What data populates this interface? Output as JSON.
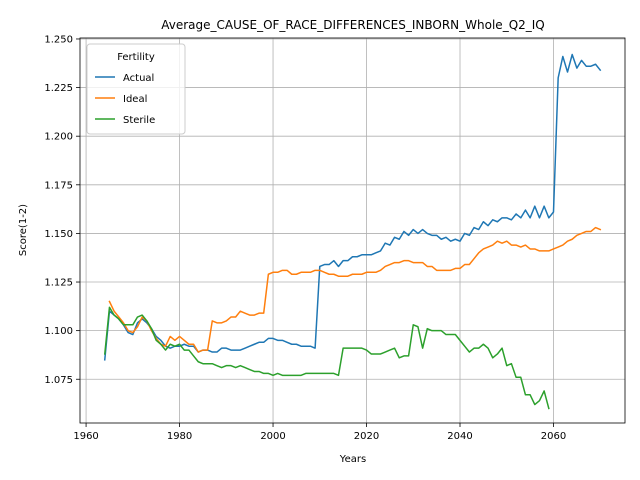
{
  "chart_data": {
    "type": "line",
    "title": "Average_CAUSE_OF_RACE_DIFFERENCES_INBORN_Whole_Q2_IQ",
    "xlabel": "Years",
    "ylabel": "Score(1-2)",
    "xlim": [
      1958.7,
      2075.3
    ],
    "ylim": [
      1.0525,
      1.2505
    ],
    "x_ticks": [
      1960,
      1980,
      2000,
      2020,
      2040,
      2060
    ],
    "y_ticks": [
      1.075,
      1.1,
      1.125,
      1.15,
      1.175,
      1.2,
      1.225,
      1.25
    ],
    "x_tick_labels": [
      "1960",
      "1980",
      "2000",
      "2020",
      "2040",
      "2060"
    ],
    "y_tick_labels": [
      "1.075",
      "1.100",
      "1.125",
      "1.150",
      "1.175",
      "1.200",
      "1.225",
      "1.250"
    ],
    "grid": true,
    "legend": {
      "title": "Fertility",
      "position": "top-left"
    },
    "series": [
      {
        "name": "Actual",
        "color": "#1f77b4",
        "points": [
          [
            1964,
            1.085
          ],
          [
            1965,
            1.11
          ],
          [
            1966,
            1.108
          ],
          [
            1967,
            1.106
          ],
          [
            1968,
            1.103
          ],
          [
            1969,
            1.099
          ],
          [
            1970,
            1.098
          ],
          [
            1971,
            1.104
          ],
          [
            1972,
            1.106
          ],
          [
            1973,
            1.104
          ],
          [
            1974,
            1.101
          ],
          [
            1975,
            1.097
          ],
          [
            1976,
            1.095
          ],
          [
            1977,
            1.092
          ],
          [
            1978,
            1.091
          ],
          [
            1979,
            1.092
          ],
          [
            1980,
            1.092
          ],
          [
            1981,
            1.093
          ],
          [
            1982,
            1.092
          ],
          [
            1983,
            1.092
          ],
          [
            1984,
            1.089
          ],
          [
            1985,
            1.09
          ],
          [
            1986,
            1.09
          ],
          [
            1987,
            1.089
          ],
          [
            1988,
            1.089
          ],
          [
            1989,
            1.091
          ],
          [
            1990,
            1.091
          ],
          [
            1991,
            1.09
          ],
          [
            1992,
            1.09
          ],
          [
            1993,
            1.09
          ],
          [
            1994,
            1.091
          ],
          [
            1995,
            1.092
          ],
          [
            1996,
            1.093
          ],
          [
            1997,
            1.094
          ],
          [
            1998,
            1.094
          ],
          [
            1999,
            1.096
          ],
          [
            2000,
            1.096
          ],
          [
            2001,
            1.095
          ],
          [
            2002,
            1.095
          ],
          [
            2003,
            1.094
          ],
          [
            2004,
            1.093
          ],
          [
            2005,
            1.093
          ],
          [
            2006,
            1.092
          ],
          [
            2007,
            1.092
          ],
          [
            2008,
            1.092
          ],
          [
            2009,
            1.091
          ],
          [
            2010,
            1.133
          ],
          [
            2011,
            1.134
          ],
          [
            2012,
            1.134
          ],
          [
            2013,
            1.136
          ],
          [
            2014,
            1.133
          ],
          [
            2015,
            1.136
          ],
          [
            2016,
            1.136
          ],
          [
            2017,
            1.138
          ],
          [
            2018,
            1.138
          ],
          [
            2019,
            1.139
          ],
          [
            2020,
            1.139
          ],
          [
            2021,
            1.139
          ],
          [
            2022,
            1.14
          ],
          [
            2023,
            1.141
          ],
          [
            2024,
            1.145
          ],
          [
            2025,
            1.144
          ],
          [
            2026,
            1.148
          ],
          [
            2027,
            1.147
          ],
          [
            2028,
            1.151
          ],
          [
            2029,
            1.149
          ],
          [
            2030,
            1.152
          ],
          [
            2031,
            1.15
          ],
          [
            2032,
            1.152
          ],
          [
            2033,
            1.15
          ],
          [
            2034,
            1.149
          ],
          [
            2035,
            1.149
          ],
          [
            2036,
            1.147
          ],
          [
            2037,
            1.148
          ],
          [
            2038,
            1.146
          ],
          [
            2039,
            1.147
          ],
          [
            2040,
            1.146
          ],
          [
            2041,
            1.15
          ],
          [
            2042,
            1.149
          ],
          [
            2043,
            1.153
          ],
          [
            2044,
            1.152
          ],
          [
            2045,
            1.156
          ],
          [
            2046,
            1.154
          ],
          [
            2047,
            1.157
          ],
          [
            2048,
            1.156
          ],
          [
            2049,
            1.158
          ],
          [
            2050,
            1.158
          ],
          [
            2051,
            1.157
          ],
          [
            2052,
            1.16
          ],
          [
            2053,
            1.158
          ],
          [
            2054,
            1.162
          ],
          [
            2055,
            1.158
          ],
          [
            2056,
            1.164
          ],
          [
            2057,
            1.158
          ],
          [
            2058,
            1.164
          ],
          [
            2059,
            1.158
          ],
          [
            2060,
            1.161
          ],
          [
            2061,
            1.23
          ],
          [
            2062,
            1.241
          ],
          [
            2063,
            1.233
          ],
          [
            2064,
            1.242
          ],
          [
            2065,
            1.235
          ],
          [
            2066,
            1.239
          ],
          [
            2067,
            1.236
          ],
          [
            2068,
            1.236
          ],
          [
            2069,
            1.237
          ],
          [
            2070,
            1.234
          ]
        ]
      },
      {
        "name": "Ideal",
        "color": "#ff7f0e",
        "points": [
          [
            1965,
            1.115
          ],
          [
            1966,
            1.11
          ],
          [
            1967,
            1.107
          ],
          [
            1968,
            1.104
          ],
          [
            1969,
            1.1
          ],
          [
            1970,
            1.099
          ],
          [
            1971,
            1.102
          ],
          [
            1972,
            1.107
          ],
          [
            1973,
            1.105
          ],
          [
            1974,
            1.1
          ],
          [
            1975,
            1.096
          ],
          [
            1976,
            1.093
          ],
          [
            1977,
            1.092
          ],
          [
            1978,
            1.097
          ],
          [
            1979,
            1.095
          ],
          [
            1980,
            1.097
          ],
          [
            1981,
            1.095
          ],
          [
            1982,
            1.093
          ],
          [
            1983,
            1.093
          ],
          [
            1984,
            1.089
          ],
          [
            1985,
            1.09
          ],
          [
            1986,
            1.09
          ],
          [
            1987,
            1.105
          ],
          [
            1988,
            1.104
          ],
          [
            1989,
            1.104
          ],
          [
            1990,
            1.105
          ],
          [
            1991,
            1.107
          ],
          [
            1992,
            1.107
          ],
          [
            1993,
            1.11
          ],
          [
            1994,
            1.109
          ],
          [
            1995,
            1.108
          ],
          [
            1996,
            1.108
          ],
          [
            1997,
            1.109
          ],
          [
            1998,
            1.109
          ],
          [
            1999,
            1.129
          ],
          [
            2000,
            1.13
          ],
          [
            2001,
            1.13
          ],
          [
            2002,
            1.131
          ],
          [
            2003,
            1.131
          ],
          [
            2004,
            1.129
          ],
          [
            2005,
            1.129
          ],
          [
            2006,
            1.13
          ],
          [
            2007,
            1.13
          ],
          [
            2008,
            1.13
          ],
          [
            2009,
            1.131
          ],
          [
            2010,
            1.131
          ],
          [
            2011,
            1.13
          ],
          [
            2012,
            1.129
          ],
          [
            2013,
            1.129
          ],
          [
            2014,
            1.128
          ],
          [
            2015,
            1.128
          ],
          [
            2016,
            1.128
          ],
          [
            2017,
            1.129
          ],
          [
            2018,
            1.129
          ],
          [
            2019,
            1.129
          ],
          [
            2020,
            1.13
          ],
          [
            2021,
            1.13
          ],
          [
            2022,
            1.13
          ],
          [
            2023,
            1.131
          ],
          [
            2024,
            1.133
          ],
          [
            2025,
            1.134
          ],
          [
            2026,
            1.135
          ],
          [
            2027,
            1.135
          ],
          [
            2028,
            1.136
          ],
          [
            2029,
            1.136
          ],
          [
            2030,
            1.135
          ],
          [
            2031,
            1.135
          ],
          [
            2032,
            1.135
          ],
          [
            2033,
            1.133
          ],
          [
            2034,
            1.133
          ],
          [
            2035,
            1.131
          ],
          [
            2036,
            1.131
          ],
          [
            2037,
            1.131
          ],
          [
            2038,
            1.131
          ],
          [
            2039,
            1.132
          ],
          [
            2040,
            1.132
          ],
          [
            2041,
            1.134
          ],
          [
            2042,
            1.134
          ],
          [
            2043,
            1.137
          ],
          [
            2044,
            1.14
          ],
          [
            2045,
            1.142
          ],
          [
            2046,
            1.143
          ],
          [
            2047,
            1.144
          ],
          [
            2048,
            1.146
          ],
          [
            2049,
            1.145
          ],
          [
            2050,
            1.146
          ],
          [
            2051,
            1.144
          ],
          [
            2052,
            1.144
          ],
          [
            2053,
            1.143
          ],
          [
            2054,
            1.144
          ],
          [
            2055,
            1.142
          ],
          [
            2056,
            1.142
          ],
          [
            2057,
            1.141
          ],
          [
            2058,
            1.141
          ],
          [
            2059,
            1.141
          ],
          [
            2060,
            1.142
          ],
          [
            2061,
            1.143
          ],
          [
            2062,
            1.144
          ],
          [
            2063,
            1.146
          ],
          [
            2064,
            1.147
          ],
          [
            2065,
            1.149
          ],
          [
            2066,
            1.15
          ],
          [
            2067,
            1.151
          ],
          [
            2068,
            1.151
          ],
          [
            2069,
            1.153
          ],
          [
            2070,
            1.152
          ]
        ]
      },
      {
        "name": "Sterile",
        "color": "#2ca02c",
        "points": [
          [
            1964,
            1.088
          ],
          [
            1965,
            1.112
          ],
          [
            1966,
            1.108
          ],
          [
            1967,
            1.106
          ],
          [
            1968,
            1.103
          ],
          [
            1969,
            1.103
          ],
          [
            1970,
            1.103
          ],
          [
            1971,
            1.107
          ],
          [
            1972,
            1.108
          ],
          [
            1973,
            1.105
          ],
          [
            1974,
            1.101
          ],
          [
            1975,
            1.095
          ],
          [
            1976,
            1.093
          ],
          [
            1977,
            1.09
          ],
          [
            1978,
            1.093
          ],
          [
            1979,
            1.092
          ],
          [
            1980,
            1.093
          ],
          [
            1981,
            1.09
          ],
          [
            1982,
            1.09
          ],
          [
            1983,
            1.087
          ],
          [
            1984,
            1.084
          ],
          [
            1985,
            1.083
          ],
          [
            1986,
            1.083
          ],
          [
            1987,
            1.083
          ],
          [
            1988,
            1.082
          ],
          [
            1989,
            1.081
          ],
          [
            1990,
            1.082
          ],
          [
            1991,
            1.082
          ],
          [
            1992,
            1.081
          ],
          [
            1993,
            1.082
          ],
          [
            1994,
            1.081
          ],
          [
            1995,
            1.08
          ],
          [
            1996,
            1.079
          ],
          [
            1997,
            1.079
          ],
          [
            1998,
            1.078
          ],
          [
            1999,
            1.078
          ],
          [
            2000,
            1.077
          ],
          [
            2001,
            1.078
          ],
          [
            2002,
            1.077
          ],
          [
            2003,
            1.077
          ],
          [
            2004,
            1.077
          ],
          [
            2005,
            1.077
          ],
          [
            2006,
            1.077
          ],
          [
            2007,
            1.078
          ],
          [
            2008,
            1.078
          ],
          [
            2009,
            1.078
          ],
          [
            2010,
            1.078
          ],
          [
            2011,
            1.078
          ],
          [
            2012,
            1.078
          ],
          [
            2013,
            1.078
          ],
          [
            2014,
            1.077
          ],
          [
            2015,
            1.091
          ],
          [
            2016,
            1.091
          ],
          [
            2017,
            1.091
          ],
          [
            2018,
            1.091
          ],
          [
            2019,
            1.091
          ],
          [
            2020,
            1.09
          ],
          [
            2021,
            1.088
          ],
          [
            2022,
            1.088
          ],
          [
            2023,
            1.088
          ],
          [
            2024,
            1.089
          ],
          [
            2025,
            1.09
          ],
          [
            2026,
            1.091
          ],
          [
            2027,
            1.086
          ],
          [
            2028,
            1.087
          ],
          [
            2029,
            1.087
          ],
          [
            2030,
            1.103
          ],
          [
            2031,
            1.102
          ],
          [
            2032,
            1.091
          ],
          [
            2033,
            1.101
          ],
          [
            2034,
            1.1
          ],
          [
            2035,
            1.1
          ],
          [
            2036,
            1.1
          ],
          [
            2037,
            1.098
          ],
          [
            2038,
            1.098
          ],
          [
            2039,
            1.098
          ],
          [
            2040,
            1.095
          ],
          [
            2041,
            1.092
          ],
          [
            2042,
            1.089
          ],
          [
            2043,
            1.091
          ],
          [
            2044,
            1.091
          ],
          [
            2045,
            1.093
          ],
          [
            2046,
            1.091
          ],
          [
            2047,
            1.086
          ],
          [
            2048,
            1.088
          ],
          [
            2049,
            1.091
          ],
          [
            2050,
            1.082
          ],
          [
            2051,
            1.083
          ],
          [
            2052,
            1.076
          ],
          [
            2053,
            1.076
          ],
          [
            2054,
            1.067
          ],
          [
            2055,
            1.067
          ],
          [
            2056,
            1.062
          ],
          [
            2057,
            1.064
          ],
          [
            2058,
            1.069
          ],
          [
            2059,
            1.06
          ]
        ]
      }
    ]
  }
}
